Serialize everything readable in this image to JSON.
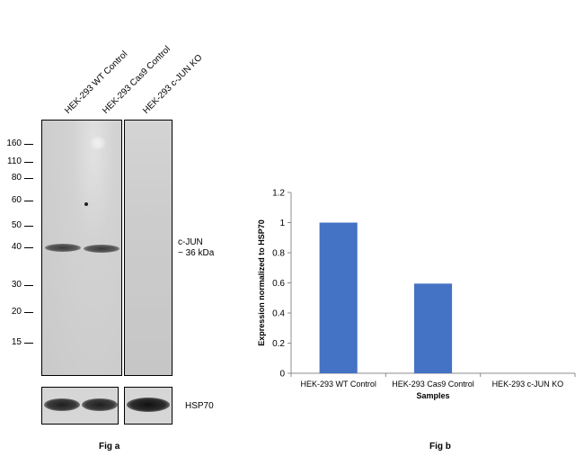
{
  "fig_a": {
    "lanes": [
      "HEK-293 WT Control",
      "HEK-293 Cas9 Control",
      "HEK-293 c-JUN KO"
    ],
    "mw_markers": [
      "160",
      "110",
      "80",
      "60",
      "50",
      "40",
      "30",
      "20",
      "15"
    ],
    "target_label": "c-JUN",
    "target_size": "~ 36 kDa",
    "loading_control": "HSP70",
    "caption": "Fig a"
  },
  "fig_b": {
    "caption": "Fig b"
  },
  "chart_data": {
    "type": "bar",
    "categories": [
      "HEK-293 WT Control",
      "HEK-293 Cas9 Control",
      "HEK-293 c-JUN KO"
    ],
    "values": [
      1.0,
      0.595,
      0.0
    ],
    "title": "",
    "xlabel": "Samples",
    "ylabel": "Expression normalized to HSP70",
    "ylim": [
      0,
      1.2
    ],
    "yticks": [
      "0",
      "0.2",
      "0.4",
      "0.6",
      "0.8",
      "1",
      "1.2"
    ],
    "bar_color": "#4472c4",
    "grid": false,
    "legend": "none"
  }
}
